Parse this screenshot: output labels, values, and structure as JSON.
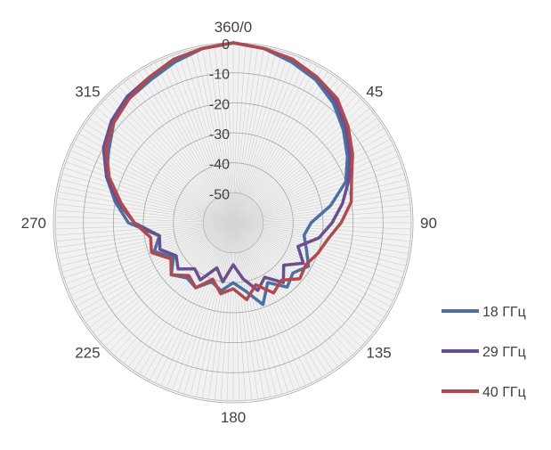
{
  "chart_data": {
    "type": "radar",
    "angular_axis": {
      "unit": "degrees",
      "direction": "clockwise",
      "zero_at": "top",
      "tick_labels": [
        "360/0",
        "45",
        "90",
        "135",
        "180",
        "225",
        "270",
        "315"
      ]
    },
    "radial_axis": {
      "range": [
        -60,
        0
      ],
      "tick_values": [
        0,
        -10,
        -20,
        -30,
        -40,
        -50
      ],
      "tick_labels": [
        "0",
        "-10",
        "-20",
        "-30",
        "-40",
        "-50"
      ]
    },
    "legend": {
      "position": "right"
    },
    "series": [
      {
        "name": "18 ГГц",
        "color": "#4f6fa3",
        "angles": [
          0,
          10,
          20,
          30,
          40,
          50,
          60,
          70,
          80,
          90,
          100,
          110,
          120,
          130,
          140,
          150,
          160,
          170,
          180,
          190,
          200,
          210,
          220,
          230,
          240,
          250,
          260,
          270,
          280,
          290,
          300,
          310,
          320,
          330,
          340,
          350,
          360
        ],
        "values": [
          0,
          -1,
          -3,
          -5,
          -8,
          -12,
          -16,
          -20,
          -27,
          -34,
          -36,
          -34,
          -31,
          -34,
          -32,
          -37,
          -31,
          -37,
          -40,
          -37,
          -39,
          -35,
          -36,
          -33,
          -37,
          -32,
          -35,
          -25,
          -20,
          -15,
          -12,
          -8,
          -6,
          -5,
          -3,
          -1,
          0
        ]
      },
      {
        "name": "29 ГГц",
        "color": "#6a4f8f",
        "angles": [
          0,
          10,
          20,
          30,
          40,
          50,
          60,
          70,
          80,
          90,
          100,
          110,
          120,
          130,
          140,
          150,
          160,
          170,
          180,
          190,
          200,
          210,
          220,
          230,
          240,
          250,
          260,
          270,
          280,
          290,
          300,
          310,
          320,
          330,
          340,
          350,
          360
        ],
        "values": [
          0,
          -1,
          -2,
          -4,
          -7,
          -11,
          -15,
          -19,
          -23,
          -27,
          -31,
          -37,
          -33,
          -38,
          -34,
          -39,
          -36,
          -41,
          -46,
          -40,
          -44,
          -38,
          -40,
          -36,
          -38,
          -34,
          -35,
          -27,
          -21,
          -15,
          -10,
          -7,
          -5,
          -4,
          -2,
          -1,
          0
        ]
      },
      {
        "name": "40 ГГц",
        "color": "#b04a4f",
        "angles": [
          0,
          10,
          20,
          30,
          40,
          50,
          60,
          70,
          80,
          90,
          100,
          110,
          120,
          130,
          140,
          150,
          160,
          170,
          180,
          190,
          200,
          210,
          220,
          230,
          240,
          250,
          260,
          270,
          280,
          290,
          300,
          310,
          320,
          330,
          340,
          350,
          360
        ],
        "values": [
          0,
          -1,
          -2,
          -4,
          -6,
          -10,
          -14,
          -18,
          -20,
          -24,
          -28,
          -30,
          -32,
          -31,
          -35,
          -33,
          -38,
          -34,
          -38,
          -36,
          -40,
          -35,
          -37,
          -33,
          -36,
          -31,
          -32,
          -27,
          -22,
          -16,
          -11,
          -8,
          -6,
          -4,
          -2,
          -1,
          0
        ]
      }
    ]
  }
}
